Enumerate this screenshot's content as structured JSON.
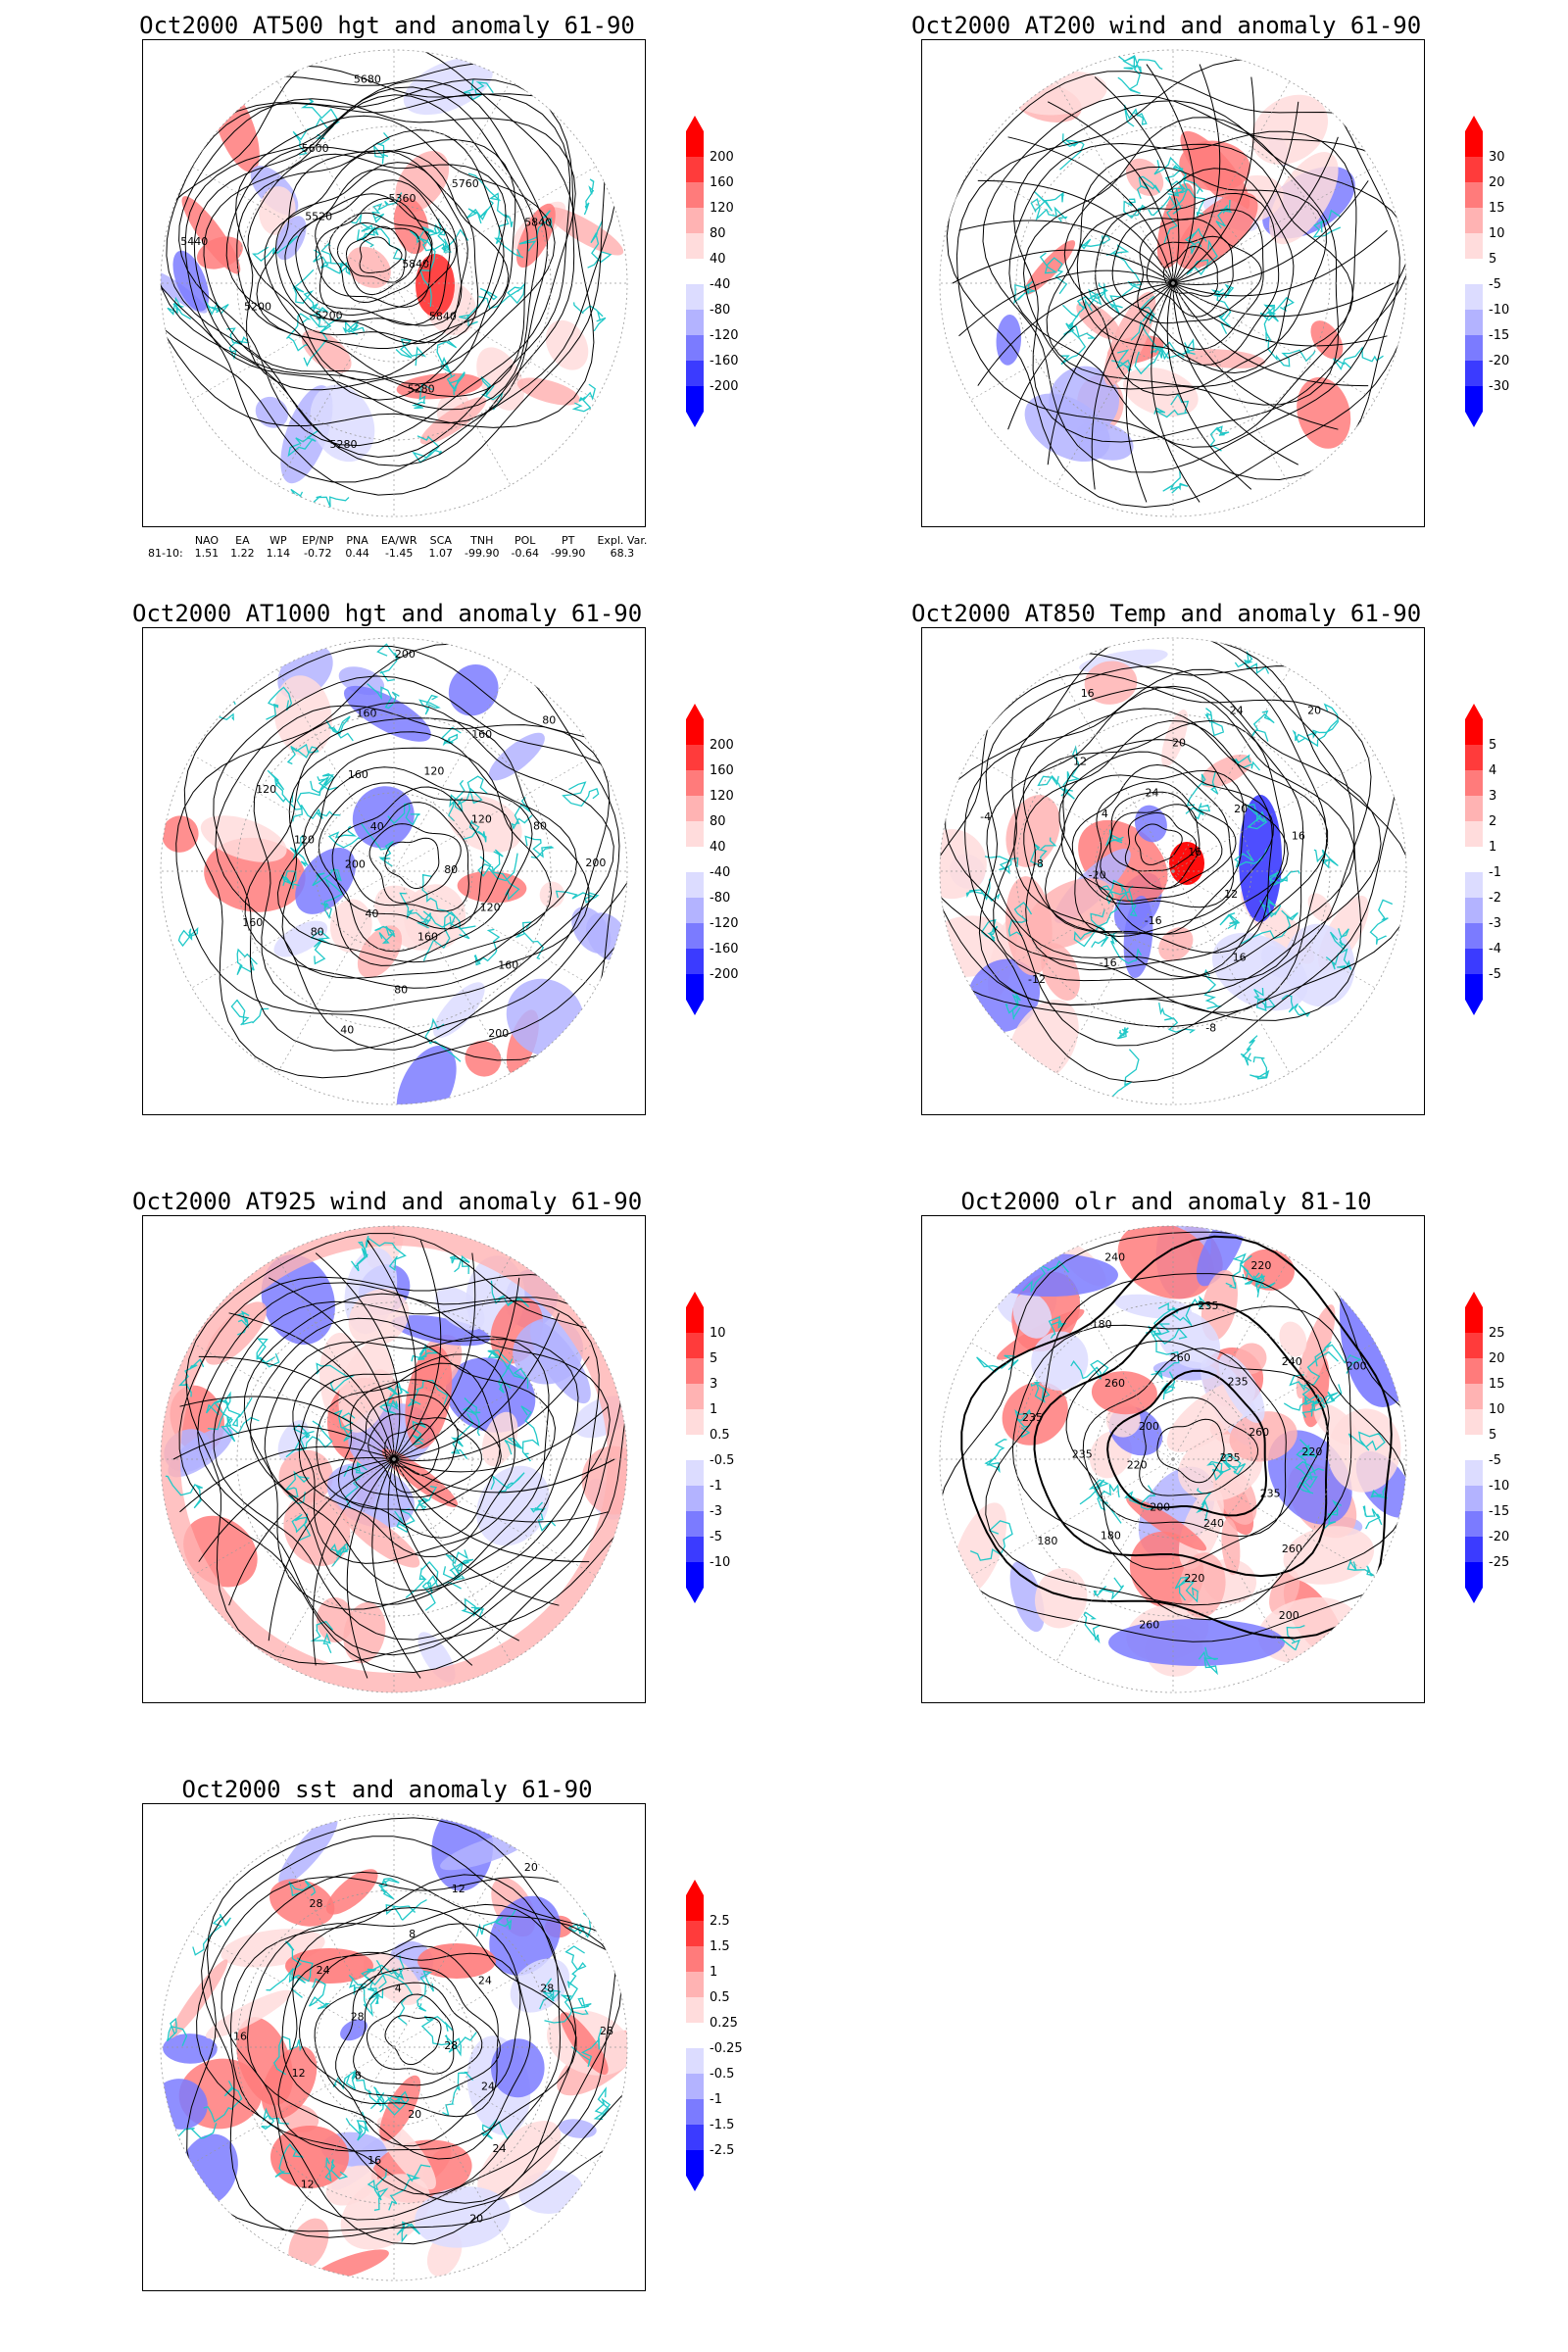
{
  "panels": [
    {
      "id": "p1",
      "title": "Oct2000 AT500 hgt and anomaly 61-90",
      "contour_labels": [
        "5840",
        "5840",
        "5280",
        "5280",
        "5200",
        "5200",
        "5440",
        "5520",
        "5600",
        "5680",
        "5360",
        "5760",
        "5840"
      ],
      "colorbar": {
        "levels": [
          "200",
          "160",
          "120",
          "80",
          "40",
          "-40",
          "-80",
          "-120",
          "-160",
          "-200"
        ],
        "colors": [
          "#ff0000",
          "#ff3b3b",
          "#ff7b7b",
          "#ffb3b3",
          "#ffdcdc",
          "#ffffff",
          "#dcdcff",
          "#b3b3ff",
          "#7b7bff",
          "#3b3bff",
          "#0000ff"
        ]
      },
      "teleconnections": {
        "headers": [
          "",
          "NAO",
          "EA",
          "WP",
          "EP/NP",
          "PNA",
          "EA/WR",
          "SCA",
          "TNH",
          "POL",
          "PT",
          "Expl. Var."
        ],
        "row": [
          "81-10:",
          "1.51",
          "1.22",
          "1.14",
          "-0.72",
          "0.44",
          "-1.45",
          "1.07",
          "-99.90",
          "-0.64",
          "-99.90",
          "68.3"
        ]
      }
    },
    {
      "id": "p2",
      "title": "Oct2000 AT200 wind and anomaly 61-90",
      "contour_labels": [],
      "colorbar": {
        "levels": [
          "30",
          "20",
          "15",
          "10",
          "5",
          "-5",
          "-10",
          "-15",
          "-20",
          "-30"
        ],
        "colors": [
          "#ff0000",
          "#ff3b3b",
          "#ff7b7b",
          "#ffb3b3",
          "#ffdcdc",
          "#ffffff",
          "#dcdcff",
          "#b3b3ff",
          "#7b7bff",
          "#3b3bff",
          "#0000ff"
        ]
      }
    },
    {
      "id": "p3",
      "title": "Oct2000 AT1000 hgt and anomaly 61-90",
      "contour_labels": [
        "80",
        "120",
        "160",
        "200",
        "160",
        "80",
        "40",
        "40",
        "80",
        "160",
        "200",
        "120",
        "120",
        "40",
        "160",
        "160",
        "200",
        "120",
        "160",
        "80",
        "120",
        "80",
        "200"
      ],
      "colorbar": {
        "levels": [
          "200",
          "160",
          "120",
          "80",
          "40",
          "-40",
          "-80",
          "-120",
          "-160",
          "-200"
        ],
        "colors": [
          "#ff0000",
          "#ff3b3b",
          "#ff7b7b",
          "#ffb3b3",
          "#ffdcdc",
          "#ffffff",
          "#dcdcff",
          "#b3b3ff",
          "#7b7bff",
          "#3b3bff",
          "#0000ff"
        ]
      }
    },
    {
      "id": "p4",
      "title": "Oct2000 AT850 Temp and anomaly 61-90",
      "contour_labels": [
        "16",
        "12",
        "16",
        "-8",
        "-16",
        "-16",
        "-12",
        "-20",
        "-8",
        "-4",
        "4",
        "12",
        "16",
        "24",
        "20",
        "24",
        "20",
        "20",
        "16"
      ],
      "colorbar": {
        "levels": [
          "5",
          "4",
          "3",
          "2",
          "1",
          "-1",
          "-2",
          "-3",
          "-4",
          "-5"
        ],
        "colors": [
          "#ff0000",
          "#ff3b3b",
          "#ff7b7b",
          "#ffb3b3",
          "#ffdcdc",
          "#ffffff",
          "#dcdcff",
          "#b3b3ff",
          "#7b7bff",
          "#3b3bff",
          "#0000ff"
        ]
      }
    },
    {
      "id": "p5",
      "title": "Oct2000 AT925 wind and anomaly 61-90",
      "contour_labels": [],
      "colorbar": {
        "levels": [
          "10",
          "5",
          "3",
          "1",
          "0.5",
          "-0.5",
          "-1",
          "-3",
          "-5",
          "-10"
        ],
        "colors": [
          "#ff0000",
          "#ff3b3b",
          "#ff7b7b",
          "#ffb3b3",
          "#ffdcdc",
          "#ffffff",
          "#dcdcff",
          "#b3b3ff",
          "#7b7bff",
          "#3b3bff",
          "#0000ff"
        ]
      }
    },
    {
      "id": "p6",
      "title": "Oct2000 olr and anomaly 81-10",
      "contour_labels": [
        "235",
        "235",
        "260",
        "200",
        "240",
        "220",
        "260",
        "200",
        "180",
        "180",
        "220",
        "235",
        "235",
        "200",
        "260",
        "180",
        "240",
        "260",
        "235",
        "220",
        "235",
        "240",
        "200",
        "260",
        "220"
      ],
      "colorbar": {
        "levels": [
          "25",
          "20",
          "15",
          "10",
          "5",
          "-5",
          "-10",
          "-15",
          "-20",
          "-25"
        ],
        "colors": [
          "#ff0000",
          "#ff3b3b",
          "#ff7b7b",
          "#ffb3b3",
          "#ffdcdc",
          "#ffffff",
          "#dcdcff",
          "#b3b3ff",
          "#7b7bff",
          "#3b3bff",
          "#0000ff"
        ]
      }
    },
    {
      "id": "p7",
      "title": "Oct2000 sst and anomaly 61-90",
      "contour_labels": [
        "28",
        "24",
        "24",
        "20",
        "20",
        "16",
        "12",
        "8",
        "12",
        "16",
        "28",
        "24",
        "28",
        "4",
        "8",
        "12",
        "20",
        "24",
        "28",
        "28"
      ],
      "colorbar": {
        "levels": [
          "2.5",
          "1.5",
          "1",
          "0.5",
          "0.25",
          "-0.25",
          "-0.5",
          "-1",
          "-1.5",
          "-2.5"
        ],
        "colors": [
          "#ff0000",
          "#ff3b3b",
          "#ff7b7b",
          "#ffb3b3",
          "#ffdcdc",
          "#ffffff",
          "#dcdcff",
          "#b3b3ff",
          "#7b7bff",
          "#3b3bff",
          "#0000ff"
        ]
      }
    }
  ]
}
